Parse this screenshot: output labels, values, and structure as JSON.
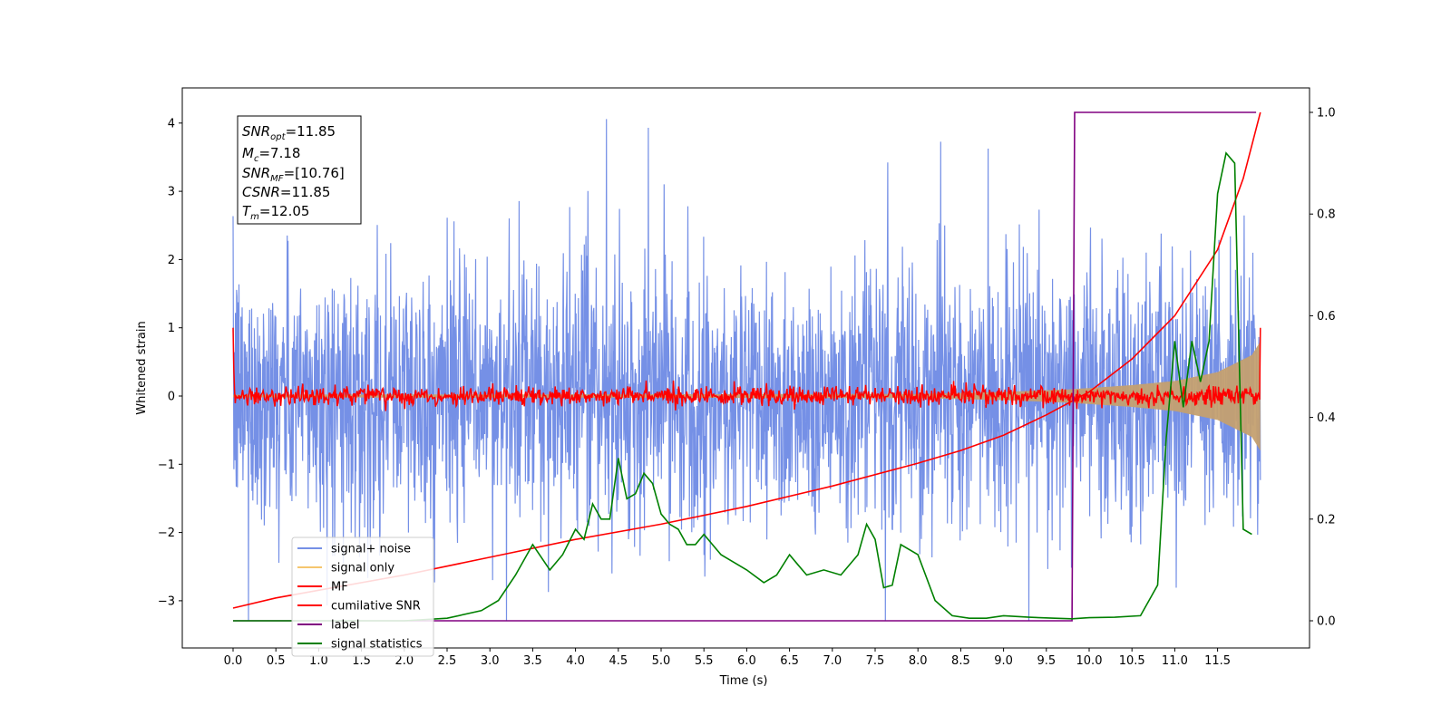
{
  "chart_data": {
    "type": "line",
    "xlabel": "Time (s)",
    "ylabel": "Whitened strain",
    "xlim": [
      -0.6,
      12.6
    ],
    "ylim": [
      -3.7,
      4.5
    ],
    "y2lim": [
      -0.05,
      1.05
    ],
    "x_ticks": [
      "0.0",
      "0.5",
      "1.0",
      "1.5",
      "2.0",
      "2.5",
      "3.0",
      "3.5",
      "4.0",
      "4.5",
      "5.0",
      "5.5",
      "6.0",
      "6.5",
      "7.0",
      "7.5",
      "8.0",
      "8.5",
      "9.0",
      "9.5",
      "10.0",
      "10.5",
      "11.0",
      "11.5"
    ],
    "y_ticks": [
      "4",
      "3",
      "2",
      "1",
      "0",
      "−1",
      "−2",
      "−3"
    ],
    "y2_ticks": [
      "1.0",
      "0.8",
      "0.6",
      "0.4",
      "0.2",
      "0.0"
    ],
    "info_box": {
      "snr_opt": {
        "base": "SNR",
        "sub": "opt",
        "value": "=11.85"
      },
      "mc": {
        "base": "M",
        "sub": "c",
        "value": "=7.18"
      },
      "snr_mf": {
        "base": "SNR",
        "sub": "MF",
        "value": "=[10.76]"
      },
      "csnr": {
        "base": "CSNR",
        "sub": "",
        "value": "=11.85"
      },
      "tm": {
        "base": "T",
        "sub": "m",
        "value": "=12.05"
      }
    },
    "legend": {
      "placement": "lower-left",
      "entries": [
        {
          "label": "signal+ noise",
          "color": "#7590e6"
        },
        {
          "label": "signal only",
          "color": "#f5c66e"
        },
        {
          "label": "MF",
          "color": "#ff0000"
        },
        {
          "label": "cumilative SNR",
          "color": "#ff0000"
        },
        {
          "label": "label",
          "color": "#800080"
        },
        {
          "label": "signal statistics",
          "color": "#008000"
        }
      ]
    },
    "series": [
      {
        "name": "signal+ noise",
        "axis": "left",
        "color": "#7590e6",
        "description_values": {
          "t_start": 0.0,
          "t_end": 12.0,
          "typical_range": [
            -2.2,
            2.2
          ],
          "max_peak": 4.15,
          "min_peak": -3.3
        }
      },
      {
        "name": "signal only",
        "axis": "left",
        "color": "#c4a070",
        "envelope": {
          "t": [
            0,
            8.0,
            9.0,
            9.8,
            10.5,
            11.0,
            11.5,
            11.9,
            12.0
          ],
          "amp": [
            0.02,
            0.03,
            0.06,
            0.1,
            0.16,
            0.22,
            0.35,
            0.6,
            0.8
          ]
        }
      },
      {
        "name": "MF",
        "axis": "left",
        "color": "#ff0000",
        "description_values": {
          "t_start": 0.0,
          "t_end": 12.0,
          "typical_range": [
            -0.15,
            0.15
          ],
          "start_value": 1.0,
          "end_value": 1.0
        }
      },
      {
        "name": "cumilative SNR",
        "axis": "right",
        "color": "#ff0000",
        "x": [
          0.0,
          0.5,
          1.0,
          2.0,
          3.0,
          4.0,
          5.0,
          6.0,
          7.0,
          8.0,
          8.5,
          9.0,
          9.5,
          10.0,
          10.5,
          11.0,
          11.5,
          11.8,
          12.0
        ],
        "y": [
          0.025,
          0.045,
          0.06,
          0.09,
          0.125,
          0.16,
          0.19,
          0.225,
          0.265,
          0.31,
          0.335,
          0.365,
          0.405,
          0.45,
          0.515,
          0.6,
          0.73,
          0.87,
          1.0
        ]
      },
      {
        "name": "label",
        "axis": "right",
        "color": "#800080",
        "x": [
          0.0,
          9.8,
          9.83,
          11.95
        ],
        "y": [
          0.0,
          0.0,
          1.0,
          1.0
        ]
      },
      {
        "name": "signal statistics",
        "axis": "right",
        "color": "#008000",
        "x": [
          0.0,
          1.0,
          2.0,
          2.5,
          2.9,
          3.1,
          3.3,
          3.5,
          3.7,
          3.85,
          4.0,
          4.1,
          4.2,
          4.3,
          4.4,
          4.5,
          4.6,
          4.7,
          4.8,
          4.9,
          5.0,
          5.1,
          5.2,
          5.3,
          5.4,
          5.5,
          5.6,
          5.7,
          5.8,
          6.0,
          6.2,
          6.35,
          6.5,
          6.6,
          6.7,
          6.9,
          7.1,
          7.3,
          7.4,
          7.5,
          7.6,
          7.7,
          7.8,
          8.0,
          8.2,
          8.4,
          8.6,
          8.8,
          9.0,
          9.3,
          9.6,
          9.8,
          10.0,
          10.3,
          10.6,
          10.8,
          10.9,
          11.0,
          11.1,
          11.2,
          11.3,
          11.4,
          11.5,
          11.6,
          11.7,
          11.8,
          11.9
        ],
        "y": [
          0.0,
          0.0,
          0.0,
          0.005,
          0.02,
          0.04,
          0.09,
          0.15,
          0.1,
          0.13,
          0.18,
          0.16,
          0.23,
          0.2,
          0.2,
          0.32,
          0.24,
          0.25,
          0.29,
          0.27,
          0.21,
          0.19,
          0.18,
          0.15,
          0.15,
          0.17,
          0.15,
          0.13,
          0.12,
          0.1,
          0.075,
          0.09,
          0.13,
          0.11,
          0.09,
          0.1,
          0.09,
          0.13,
          0.19,
          0.16,
          0.065,
          0.07,
          0.15,
          0.13,
          0.04,
          0.01,
          0.005,
          0.005,
          0.01,
          0.007,
          0.005,
          0.004,
          0.006,
          0.007,
          0.01,
          0.07,
          0.36,
          0.55,
          0.42,
          0.55,
          0.47,
          0.55,
          0.84,
          0.92,
          0.9,
          0.18,
          0.17
        ]
      }
    ]
  }
}
